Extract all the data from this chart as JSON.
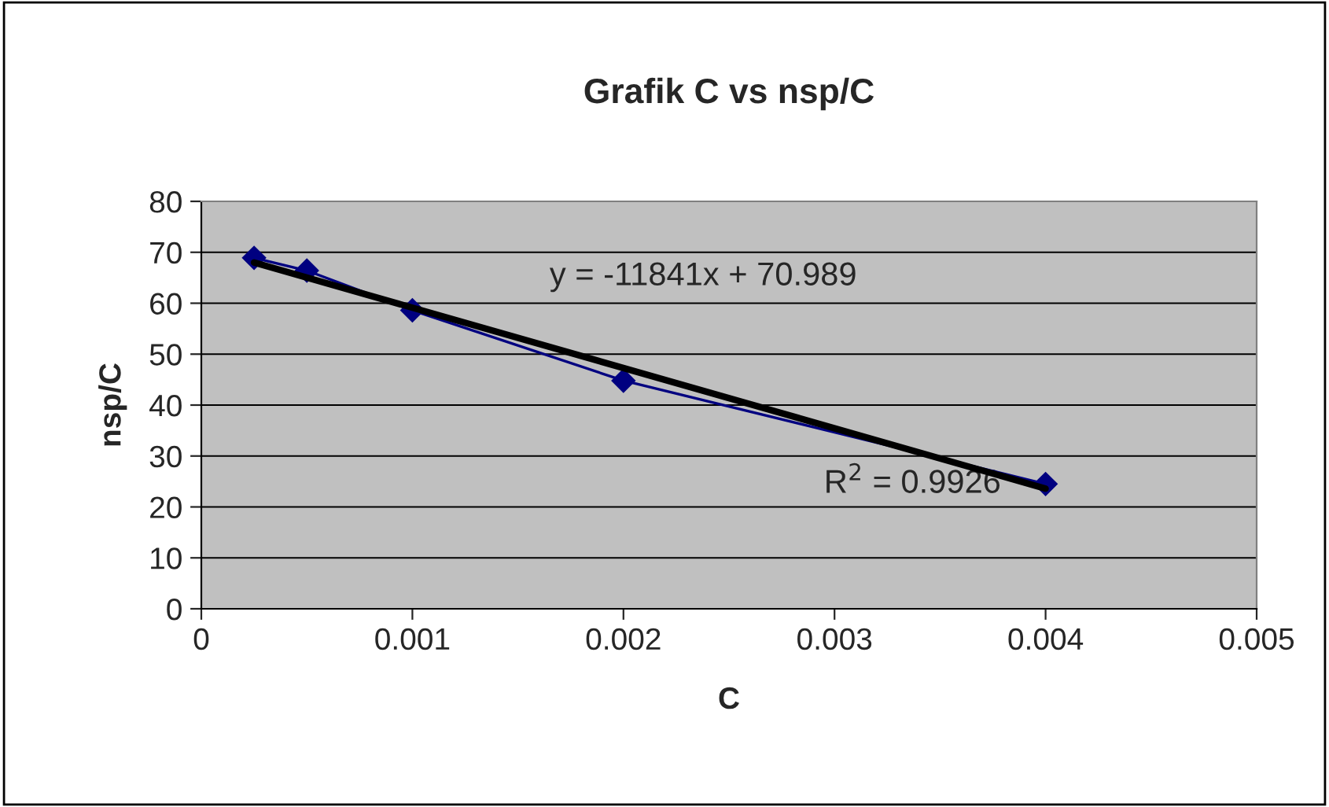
{
  "chart_data": {
    "type": "line",
    "title": "Grafik C vs nsp/C",
    "xlabel": "C",
    "ylabel": "nsp/C",
    "x": [
      0.00025,
      0.0005,
      0.001,
      0.002,
      0.004
    ],
    "series": [
      {
        "color": "#000080",
        "values": [
          68.9,
          66.4,
          58.6,
          44.8,
          24.5
        ],
        "marker": "diamond"
      },
      {
        "type": "line",
        "color": "#000000",
        "x": [
          0.00025,
          0.004
        ],
        "values": [
          68.0,
          23.6
        ],
        "marker": "none"
      }
    ],
    "xlim": [
      0,
      0.005
    ],
    "xticks": [
      0,
      0.001,
      0.002,
      0.003,
      0.004,
      0.005
    ],
    "ylim": [
      0,
      80
    ],
    "yticks": [
      0,
      10,
      20,
      30,
      40,
      50,
      60,
      70,
      80
    ],
    "grid": "y",
    "annotations": [
      "y = -11841x + 70.989",
      "R$^{2}$ = 0.9926"
    ]
  }
}
